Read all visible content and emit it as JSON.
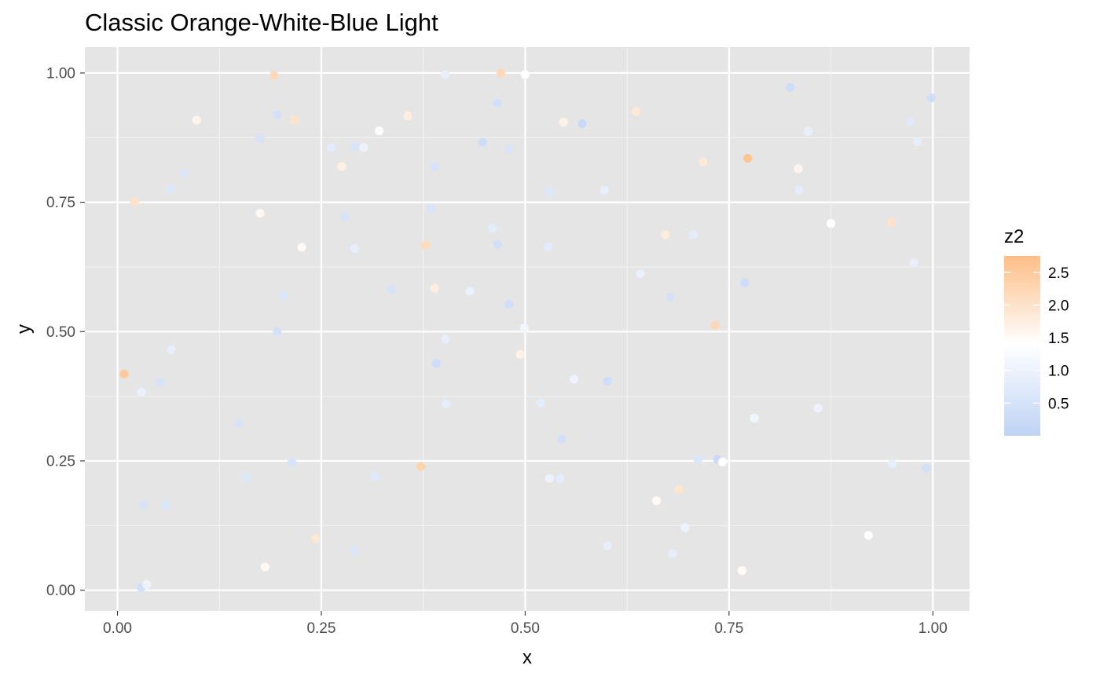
{
  "chart_data": {
    "type": "scatter",
    "title": "Classic Orange-White-Blue Light",
    "xlabel": "x",
    "ylabel": "y",
    "xlim": [
      -0.04,
      1.045
    ],
    "ylim": [
      -0.04,
      1.05
    ],
    "x_ticks": [
      "0.00",
      "0.25",
      "0.50",
      "0.75",
      "1.00"
    ],
    "x_tick_values": [
      0,
      0.25,
      0.5,
      0.75,
      1.0
    ],
    "y_ticks": [
      "0.00",
      "0.25",
      "0.50",
      "0.75",
      "1.00"
    ],
    "y_tick_values": [
      0,
      0.25,
      0.5,
      0.75,
      1.0
    ],
    "grid": true,
    "panel_background": "#e5e5e5",
    "colorbar": {
      "title": "z2",
      "placement": "right",
      "range": [
        0,
        2.75
      ],
      "ticks": [
        "0.5",
        "1.0",
        "1.5",
        "2.0",
        "2.5"
      ],
      "tick_values": [
        0.5,
        1.0,
        1.5,
        2.0,
        2.5
      ],
      "colors": [
        "#bfd3f5",
        "#ffffff",
        "#fdbe87"
      ],
      "midpoint": 1.4
    },
    "points": [
      {
        "x": 0.192,
        "y": 0.995,
        "z": 2.2
      },
      {
        "x": 0.47,
        "y": 1.0,
        "z": 2.2
      },
      {
        "x": 0.5,
        "y": 0.997,
        "z": 1.4
      },
      {
        "x": 0.402,
        "y": 0.997,
        "z": 0.9
      },
      {
        "x": 0.825,
        "y": 0.972,
        "z": 0.35
      },
      {
        "x": 0.998,
        "y": 0.952,
        "z": 0.35
      },
      {
        "x": 0.466,
        "y": 0.942,
        "z": 0.4
      },
      {
        "x": 0.636,
        "y": 0.926,
        "z": 1.85
      },
      {
        "x": 0.196,
        "y": 0.919,
        "z": 0.45
      },
      {
        "x": 0.356,
        "y": 0.917,
        "z": 1.75
      },
      {
        "x": 0.097,
        "y": 0.909,
        "z": 1.6
      },
      {
        "x": 0.217,
        "y": 0.909,
        "z": 2.0
      },
      {
        "x": 0.972,
        "y": 0.906,
        "z": 0.7
      },
      {
        "x": 0.547,
        "y": 0.905,
        "z": 1.65
      },
      {
        "x": 0.57,
        "y": 0.902,
        "z": 0.2
      },
      {
        "x": 0.321,
        "y": 0.888,
        "z": 1.45
      },
      {
        "x": 0.847,
        "y": 0.887,
        "z": 0.9
      },
      {
        "x": 0.175,
        "y": 0.874,
        "z": 0.5
      },
      {
        "x": 0.448,
        "y": 0.866,
        "z": 0.3
      },
      {
        "x": 0.981,
        "y": 0.867,
        "z": 0.9
      },
      {
        "x": 0.291,
        "y": 0.858,
        "z": 0.55
      },
      {
        "x": 0.262,
        "y": 0.856,
        "z": 0.8
      },
      {
        "x": 0.302,
        "y": 0.856,
        "z": 1.0
      },
      {
        "x": 0.48,
        "y": 0.853,
        "z": 0.55
      },
      {
        "x": 0.773,
        "y": 0.835,
        "z": 2.6
      },
      {
        "x": 0.718,
        "y": 0.828,
        "z": 1.85
      },
      {
        "x": 0.389,
        "y": 0.819,
        "z": 0.5
      },
      {
        "x": 0.275,
        "y": 0.819,
        "z": 1.7
      },
      {
        "x": 0.835,
        "y": 0.815,
        "z": 1.6
      },
      {
        "x": 0.082,
        "y": 0.806,
        "z": 0.6
      },
      {
        "x": 0.065,
        "y": 0.775,
        "z": 0.65
      },
      {
        "x": 0.836,
        "y": 0.774,
        "z": 0.8
      },
      {
        "x": 0.597,
        "y": 0.773,
        "z": 0.9
      },
      {
        "x": 0.53,
        "y": 0.77,
        "z": 0.65
      },
      {
        "x": 0.021,
        "y": 0.751,
        "z": 2.0
      },
      {
        "x": 0.384,
        "y": 0.738,
        "z": 0.55
      },
      {
        "x": 0.175,
        "y": 0.729,
        "z": 1.55
      },
      {
        "x": 0.279,
        "y": 0.722,
        "z": 0.5
      },
      {
        "x": 0.875,
        "y": 0.709,
        "z": 1.4
      },
      {
        "x": 0.949,
        "y": 0.711,
        "z": 2.0
      },
      {
        "x": 0.46,
        "y": 0.7,
        "z": 0.8
      },
      {
        "x": 0.672,
        "y": 0.687,
        "z": 1.8
      },
      {
        "x": 0.706,
        "y": 0.687,
        "z": 0.8
      },
      {
        "x": 0.378,
        "y": 0.667,
        "z": 2.15
      },
      {
        "x": 0.466,
        "y": 0.669,
        "z": 0.4
      },
      {
        "x": 0.226,
        "y": 0.663,
        "z": 1.5
      },
      {
        "x": 0.528,
        "y": 0.664,
        "z": 0.8
      },
      {
        "x": 0.291,
        "y": 0.661,
        "z": 0.85
      },
      {
        "x": 0.977,
        "y": 0.633,
        "z": 0.9
      },
      {
        "x": 0.641,
        "y": 0.612,
        "z": 0.95
      },
      {
        "x": 0.769,
        "y": 0.594,
        "z": 0.35
      },
      {
        "x": 0.389,
        "y": 0.584,
        "z": 1.75
      },
      {
        "x": 0.336,
        "y": 0.581,
        "z": 0.5
      },
      {
        "x": 0.432,
        "y": 0.578,
        "z": 0.95
      },
      {
        "x": 0.204,
        "y": 0.569,
        "z": 0.6
      },
      {
        "x": 0.678,
        "y": 0.567,
        "z": 0.45
      },
      {
        "x": 0.48,
        "y": 0.553,
        "z": 0.4
      },
      {
        "x": 0.733,
        "y": 0.512,
        "z": 2.2
      },
      {
        "x": 0.499,
        "y": 0.507,
        "z": 1.1
      },
      {
        "x": 0.196,
        "y": 0.5,
        "z": 0.45
      },
      {
        "x": 0.402,
        "y": 0.485,
        "z": 0.85
      },
      {
        "x": 0.066,
        "y": 0.465,
        "z": 0.9
      },
      {
        "x": 0.494,
        "y": 0.456,
        "z": 1.7
      },
      {
        "x": 0.391,
        "y": 0.438,
        "z": 0.35
      },
      {
        "x": 0.008,
        "y": 0.418,
        "z": 2.5
      },
      {
        "x": 0.56,
        "y": 0.408,
        "z": 1.0
      },
      {
        "x": 0.601,
        "y": 0.404,
        "z": 0.35
      },
      {
        "x": 0.052,
        "y": 0.402,
        "z": 0.5
      },
      {
        "x": 0.029,
        "y": 0.383,
        "z": 0.95
      },
      {
        "x": 0.519,
        "y": 0.362,
        "z": 0.8
      },
      {
        "x": 0.403,
        "y": 0.36,
        "z": 0.85
      },
      {
        "x": 0.859,
        "y": 0.352,
        "z": 1.0
      },
      {
        "x": 0.781,
        "y": 0.333,
        "z": 1.1
      },
      {
        "x": 0.149,
        "y": 0.322,
        "z": 0.5
      },
      {
        "x": 0.545,
        "y": 0.292,
        "z": 0.4
      },
      {
        "x": 0.712,
        "y": 0.253,
        "z": 0.6
      },
      {
        "x": 0.736,
        "y": 0.253,
        "z": 0.25
      },
      {
        "x": 0.742,
        "y": 0.248,
        "z": 1.4
      },
      {
        "x": 0.214,
        "y": 0.247,
        "z": 0.5
      },
      {
        "x": 0.95,
        "y": 0.245,
        "z": 0.9
      },
      {
        "x": 0.372,
        "y": 0.239,
        "z": 2.3
      },
      {
        "x": 0.992,
        "y": 0.236,
        "z": 0.4
      },
      {
        "x": 0.316,
        "y": 0.22,
        "z": 0.7
      },
      {
        "x": 0.158,
        "y": 0.219,
        "z": 0.65
      },
      {
        "x": 0.53,
        "y": 0.216,
        "z": 1.0
      },
      {
        "x": 0.543,
        "y": 0.215,
        "z": 0.8
      },
      {
        "x": 0.689,
        "y": 0.195,
        "z": 1.95
      },
      {
        "x": 0.661,
        "y": 0.173,
        "z": 1.5
      },
      {
        "x": 0.032,
        "y": 0.165,
        "z": 0.5
      },
      {
        "x": 0.059,
        "y": 0.164,
        "z": 0.6
      },
      {
        "x": 0.696,
        "y": 0.121,
        "z": 1.0
      },
      {
        "x": 0.921,
        "y": 0.106,
        "z": 1.45
      },
      {
        "x": 0.243,
        "y": 0.1,
        "z": 1.9
      },
      {
        "x": 0.601,
        "y": 0.086,
        "z": 0.9
      },
      {
        "x": 0.29,
        "y": 0.077,
        "z": 0.6
      },
      {
        "x": 0.681,
        "y": 0.071,
        "z": 0.85
      },
      {
        "x": 0.181,
        "y": 0.045,
        "z": 1.55
      },
      {
        "x": 0.766,
        "y": 0.038,
        "z": 1.5
      },
      {
        "x": 0.029,
        "y": 0.005,
        "z": 0.4
      },
      {
        "x": 0.036,
        "y": 0.011,
        "z": 1.0
      }
    ]
  }
}
